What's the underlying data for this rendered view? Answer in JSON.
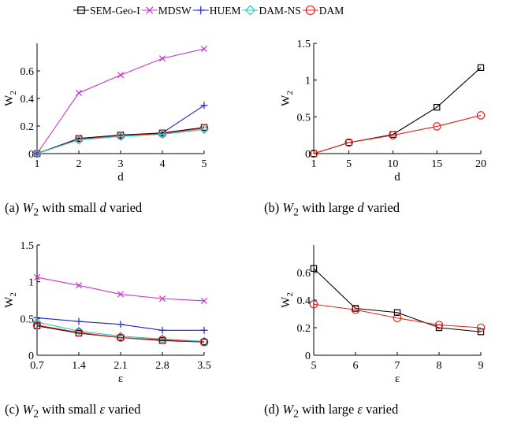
{
  "legend": {
    "placement": "top",
    "items": [
      {
        "name": "SEM-Geo-I",
        "color": "#000000",
        "marker": "square"
      },
      {
        "name": "MDSW",
        "color": "#cc33cc",
        "marker": "x"
      },
      {
        "name": "HUEM",
        "color": "#1f1fd0",
        "marker": "plus"
      },
      {
        "name": "DAM-NS",
        "color": "#22c8c8",
        "marker": "diamond"
      },
      {
        "name": "DAM",
        "color": "#e8201a",
        "marker": "circle"
      }
    ]
  },
  "captions": [
    {
      "prefix": "(a) ",
      "math": "W",
      "sub": "2",
      "text": " with small ",
      "var": "d",
      "suffix": " varied"
    },
    {
      "prefix": "(b) ",
      "math": "W",
      "sub": "2",
      "text": " with large ",
      "var": "d",
      "suffix": " varied"
    },
    {
      "prefix": "(c) ",
      "math": "W",
      "sub": "2",
      "text": " with small ",
      "var": "ε",
      "suffix": " varied"
    },
    {
      "prefix": "(d) ",
      "math": "W",
      "sub": "2",
      "text": " with large ",
      "var": "ε",
      "suffix": " varied"
    }
  ],
  "chart_data": [
    {
      "type": "line",
      "xlabel": "d",
      "ylabel": "W",
      "ylabel_sub": "2",
      "xlim": [
        1,
        5
      ],
      "ylim": [
        0,
        0.8
      ],
      "xticks": [
        1,
        2,
        3,
        4,
        5
      ],
      "xtick_labels": [
        "1",
        "2",
        "3",
        "4",
        "5"
      ],
      "yticks": [
        0,
        0.2,
        0.4,
        0.6
      ],
      "ytick_labels": [
        "0",
        "0.2",
        "0.4",
        "0.6"
      ],
      "grid": false,
      "x": [
        1,
        2,
        3,
        4,
        5
      ],
      "series": [
        {
          "name": "MDSW",
          "values": [
            0,
            0.44,
            0.57,
            0.69,
            0.76
          ]
        },
        {
          "name": "HUEM",
          "values": [
            0,
            0.11,
            0.13,
            0.15,
            0.35
          ]
        },
        {
          "name": "SEM-Geo-I",
          "values": [
            0,
            0.11,
            0.135,
            0.15,
            0.19
          ]
        },
        {
          "name": "DAM",
          "values": [
            0,
            0.105,
            0.13,
            0.145,
            0.185
          ]
        },
        {
          "name": "DAM-NS",
          "values": [
            0,
            0.1,
            0.125,
            0.14,
            0.175
          ]
        }
      ]
    },
    {
      "type": "line",
      "xlabel": "d",
      "ylabel": "W",
      "ylabel_sub": "2",
      "xlim": [
        1,
        20
      ],
      "ylim": [
        0,
        1.5
      ],
      "xticks": [
        1,
        5,
        10,
        15,
        20
      ],
      "xtick_labels": [
        "1",
        "5",
        "10",
        "15",
        "20"
      ],
      "yticks": [
        0,
        0.5,
        1,
        1.5
      ],
      "ytick_labels": [
        "0",
        "0.5",
        "1",
        "1.5"
      ],
      "grid": false,
      "x": [
        1,
        5,
        10,
        15,
        20
      ],
      "series": [
        {
          "name": "SEM-Geo-I",
          "values": [
            0,
            0.15,
            0.26,
            0.63,
            1.17
          ]
        },
        {
          "name": "DAM",
          "values": [
            0,
            0.15,
            0.25,
            0.37,
            0.52
          ]
        }
      ]
    },
    {
      "type": "line",
      "xlabel": "ε",
      "ylabel": "W",
      "ylabel_sub": "2",
      "xlim": [
        0.7,
        3.5
      ],
      "ylim": [
        0,
        1.5
      ],
      "xticks": [
        0.7,
        1.4,
        2.1,
        2.8,
        3.5
      ],
      "xtick_labels": [
        "0.7",
        "1.4",
        "2.1",
        "2.8",
        "3.5"
      ],
      "yticks": [
        0,
        0.5,
        1,
        1.5
      ],
      "ytick_labels": [
        "0",
        "0.5",
        "1",
        "1.5"
      ],
      "grid": false,
      "x": [
        0.7,
        1.4,
        2.1,
        2.8,
        3.5
      ],
      "series": [
        {
          "name": "MDSW",
          "values": [
            1.06,
            0.95,
            0.83,
            0.77,
            0.74
          ]
        },
        {
          "name": "HUEM",
          "values": [
            0.51,
            0.46,
            0.42,
            0.34,
            0.34
          ]
        },
        {
          "name": "DAM-NS",
          "values": [
            0.45,
            0.33,
            0.26,
            0.22,
            0.19
          ]
        },
        {
          "name": "SEM-Geo-I",
          "values": [
            0.4,
            0.3,
            0.24,
            0.2,
            0.18
          ]
        },
        {
          "name": "DAM",
          "values": [
            0.41,
            0.31,
            0.24,
            0.21,
            0.18
          ]
        }
      ]
    },
    {
      "type": "line",
      "xlabel": "ε",
      "ylabel": "W",
      "ylabel_sub": "2",
      "xlim": [
        5,
        9
      ],
      "ylim": [
        0,
        0.8
      ],
      "xticks": [
        5,
        6,
        7,
        8,
        9
      ],
      "xtick_labels": [
        "5",
        "6",
        "7",
        "8",
        "9"
      ],
      "yticks": [
        0,
        0.2,
        0.4,
        0.6
      ],
      "ytick_labels": [
        "0",
        "0.2",
        "0.4",
        "0.6"
      ],
      "grid": false,
      "x": [
        5,
        6,
        7,
        8,
        9
      ],
      "series": [
        {
          "name": "SEM-Geo-I",
          "values": [
            0.63,
            0.34,
            0.31,
            0.2,
            0.17
          ]
        },
        {
          "name": "DAM",
          "values": [
            0.37,
            0.33,
            0.27,
            0.22,
            0.2
          ]
        }
      ]
    }
  ]
}
